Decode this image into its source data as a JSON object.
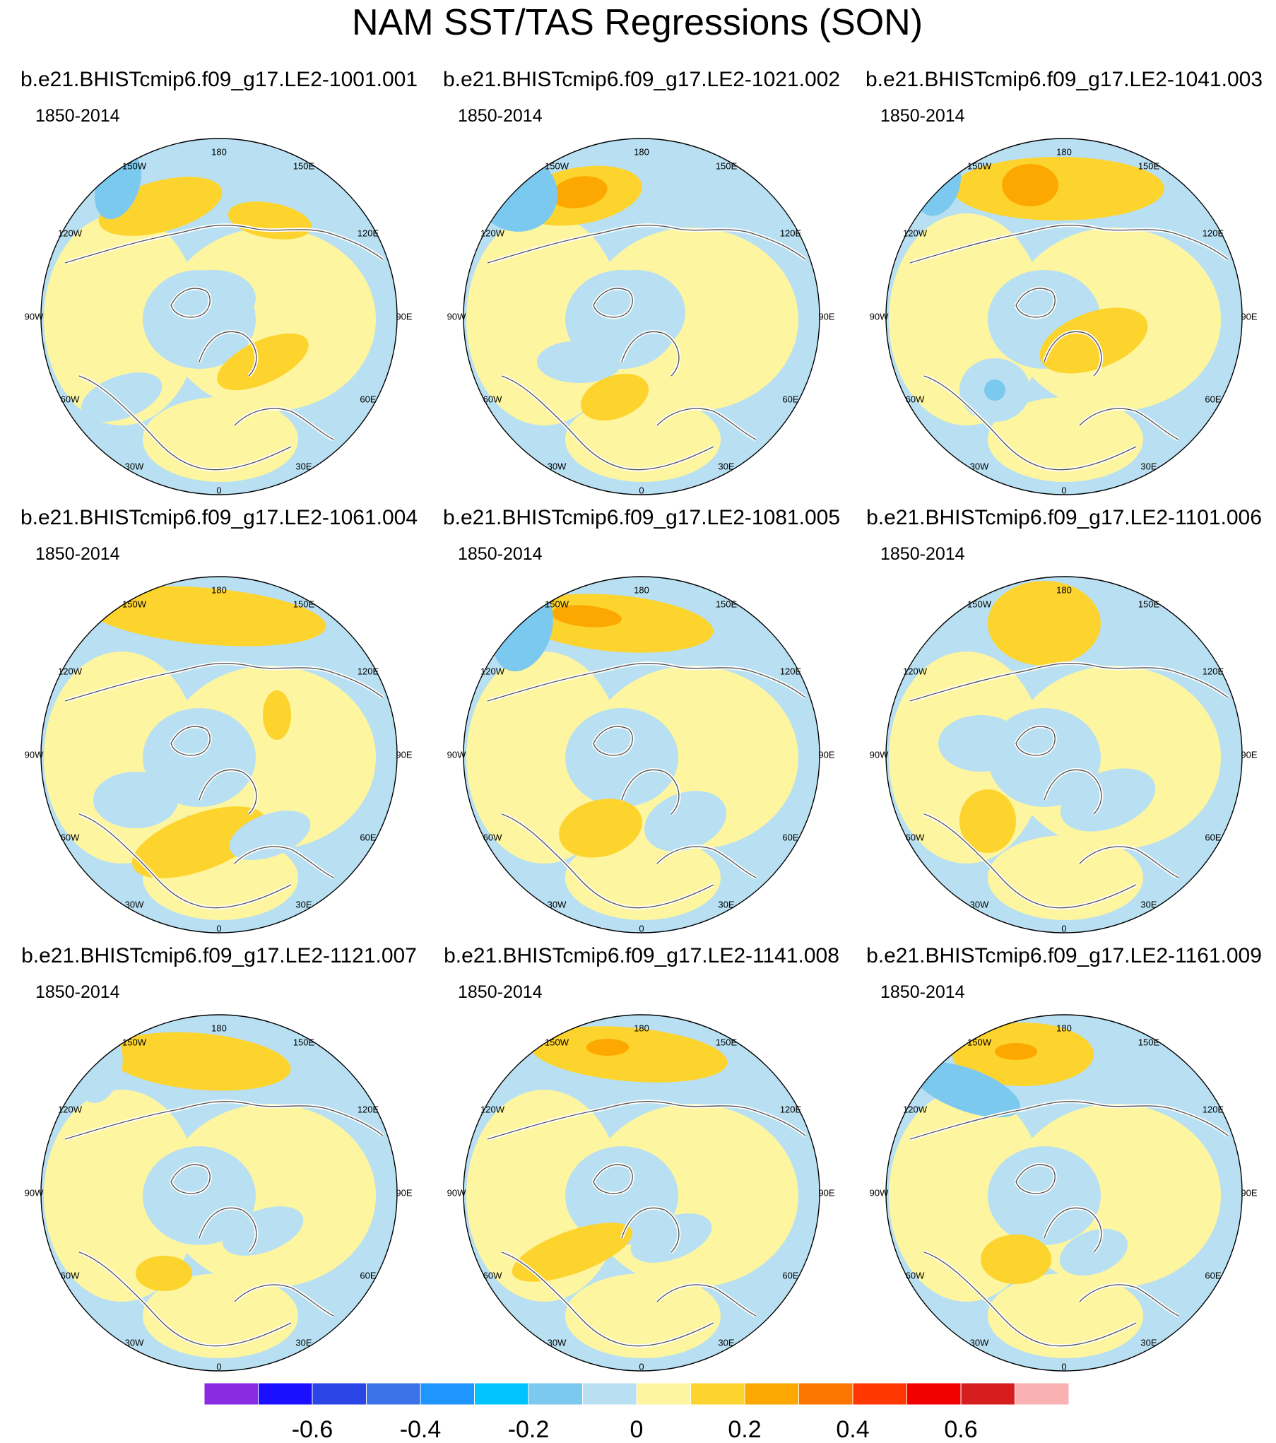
{
  "figure": {
    "title": "NAM SST/TAS Regressions (SON)",
    "period_label": "1850-2014"
  },
  "panels": [
    {
      "title": "b.e21.BHISTcmip6.f09_g17.LE2-1001.001",
      "period": "1850-2014"
    },
    {
      "title": "b.e21.BHISTcmip6.f09_g17.LE2-1021.002",
      "period": "1850-2014"
    },
    {
      "title": "b.e21.BHISTcmip6.f09_g17.LE2-1041.003",
      "period": "1850-2014"
    },
    {
      "title": "b.e21.BHISTcmip6.f09_g17.LE2-1061.004",
      "period": "1850-2014"
    },
    {
      "title": "b.e21.BHISTcmip6.f09_g17.LE2-1081.005",
      "period": "1850-2014"
    },
    {
      "title": "b.e21.BHISTcmip6.f09_g17.LE2-1101.006",
      "period": "1850-2014"
    },
    {
      "title": "b.e21.BHISTcmip6.f09_g17.LE2-1121.007",
      "period": "1850-2014"
    },
    {
      "title": "b.e21.BHISTcmip6.f09_g17.LE2-1141.008",
      "period": "1850-2014"
    },
    {
      "title": "b.e21.BHISTcmip6.f09_g17.LE2-1161.009",
      "period": "1850-2014"
    }
  ],
  "longitude_labels": [
    "180",
    "150E",
    "120E",
    "90E",
    "60E",
    "30E",
    "0",
    "30W",
    "60W",
    "90W",
    "120W",
    "150W"
  ],
  "colorbar": {
    "colors": [
      "#8a2be2",
      "#1a10ff",
      "#2b45e6",
      "#3a72e8",
      "#1f96ff",
      "#00c4ff",
      "#7cc9ef",
      "#b8e0f2",
      "#fdf5a0",
      "#fdd32e",
      "#fca800",
      "#fc7500",
      "#ff3600",
      "#f20000",
      "#d51d1d",
      "#f9b1b1"
    ],
    "tick_labels": [
      "-0.6",
      "-0.4",
      "-0.2",
      "0",
      "0.2",
      "0.4",
      "0.6"
    ]
  },
  "legend_colors": {
    "ocean_neutral": "#fdf5a0",
    "weak_negative": "#b8e0f2",
    "moderate_negative": "#7cc9ef",
    "weak_positive": "#fdd32e",
    "moderate_positive": "#fca800"
  }
}
